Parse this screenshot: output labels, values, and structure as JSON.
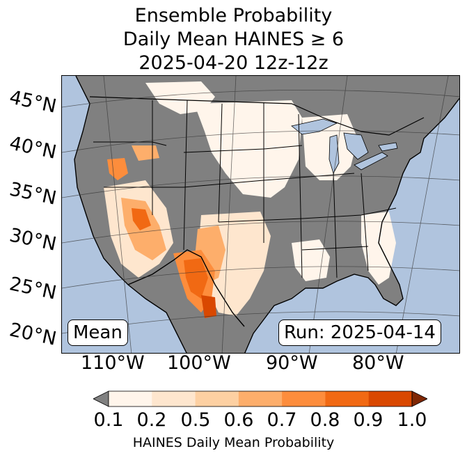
{
  "title": {
    "line1": "Ensemble Probability",
    "line2": "Daily Mean HAINES ≥ 6",
    "line3": "2025-04-20 12z-12z"
  },
  "map": {
    "latitude_labels": [
      "45°N",
      "40°N",
      "35°N",
      "30°N",
      "25°N",
      "20°N"
    ],
    "longitude_labels": [
      "110°W",
      "100°W",
      "90°W",
      "80°W"
    ],
    "ocean_color": "#b0c4de",
    "land_missing_color": "#808080",
    "lake_color": "#b0c4de"
  },
  "annotations": {
    "left": "Mean",
    "right": "Run: 2025-04-14"
  },
  "colorbar": {
    "label": "HAINES Daily Mean Probability",
    "tick_labels": [
      "0.1",
      "0.2",
      "0.5",
      "0.6",
      "0.7",
      "0.8",
      "0.9",
      "1.0"
    ],
    "under_color": "#808080",
    "over_color": "#7f2704",
    "bin_colors": [
      "#fff5eb",
      "#fee6ce",
      "#fdd0a2",
      "#fdae6b",
      "#fd8d3c",
      "#f16913",
      "#d94801"
    ]
  }
}
